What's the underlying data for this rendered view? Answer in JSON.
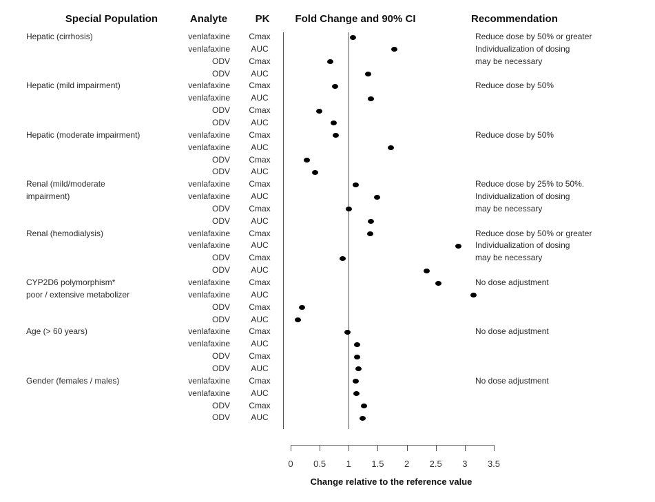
{
  "header": {
    "special_population": "Special Population",
    "analyte": "Analyte",
    "pk": "PK",
    "fold_change": "Fold Change and 90% CI",
    "recommendation": "Recommendation"
  },
  "chart_data": {
    "type": "scatter",
    "title": "Fold Change and 90% CI",
    "xlabel": "Change relative to the reference value",
    "xlim": [
      0,
      3.5
    ],
    "x_ticks": [
      0,
      0.5,
      1,
      1.5,
      2,
      2.5,
      3,
      3.5
    ],
    "x_tick_labels": [
      "0",
      "0.5",
      "1",
      "1.5",
      "2",
      "2.5",
      "3",
      "3.5"
    ],
    "reference_line_x": 1,
    "grid": false,
    "point_style": "filled-black-dot",
    "groups": [
      {
        "population_lines": [
          "Hepatic (cirrhosis)"
        ],
        "recommendation_lines": [
          "Reduce dose by 50% or greater",
          "Individualization of dosing",
          "may be necessary"
        ],
        "rows": [
          {
            "analyte": "venlafaxine",
            "pk": "Cmax",
            "value": 1.07
          },
          {
            "analyte": "venlafaxine",
            "pk": "AUC",
            "value": 1.78
          },
          {
            "analyte": "ODV",
            "pk": "Cmax",
            "value": 0.68
          },
          {
            "analyte": "ODV",
            "pk": "AUC",
            "value": 1.33
          }
        ]
      },
      {
        "population_lines": [
          "Hepatic (mild impairment)"
        ],
        "recommendation_lines": [
          "Reduce dose by 50%"
        ],
        "rows": [
          {
            "analyte": "venlafaxine",
            "pk": "Cmax",
            "value": 0.77
          },
          {
            "analyte": "venlafaxine",
            "pk": "AUC",
            "value": 1.38
          },
          {
            "analyte": "ODV",
            "pk": "Cmax",
            "value": 0.49
          },
          {
            "analyte": "ODV",
            "pk": "AUC",
            "value": 0.74
          }
        ]
      },
      {
        "population_lines": [
          "Hepatic (moderate impairment)"
        ],
        "recommendation_lines": [
          "Reduce dose by 50%"
        ],
        "rows": [
          {
            "analyte": "venlafaxine",
            "pk": "Cmax",
            "value": 0.78
          },
          {
            "analyte": "venlafaxine",
            "pk": "AUC",
            "value": 1.73
          },
          {
            "analyte": "ODV",
            "pk": "Cmax",
            "value": 0.28
          },
          {
            "analyte": "ODV",
            "pk": "AUC",
            "value": 0.42
          }
        ]
      },
      {
        "population_lines": [
          "Renal (mild/moderate",
          "impairment)"
        ],
        "recommendation_lines": [
          "Reduce dose by 25% to 50%.",
          "Individualization of dosing",
          "may be necessary"
        ],
        "rows": [
          {
            "analyte": "venlafaxine",
            "pk": "Cmax",
            "value": 1.12
          },
          {
            "analyte": "venlafaxine",
            "pk": "AUC",
            "value": 1.49
          },
          {
            "analyte": "ODV",
            "pk": "Cmax",
            "value": 1.0
          },
          {
            "analyte": "ODV",
            "pk": "AUC",
            "value": 1.38
          }
        ]
      },
      {
        "population_lines": [
          "Renal (hemodialysis)"
        ],
        "recommendation_lines": [
          "Reduce dose by 50% or greater",
          "Individualization of dosing",
          "may be necessary"
        ],
        "rows": [
          {
            "analyte": "venlafaxine",
            "pk": "Cmax",
            "value": 1.37
          },
          {
            "analyte": "venlafaxine",
            "pk": "AUC",
            "value": 2.89
          },
          {
            "analyte": "ODV",
            "pk": "Cmax",
            "value": 0.9
          },
          {
            "analyte": "ODV",
            "pk": "AUC",
            "value": 2.34
          }
        ]
      },
      {
        "population_lines": [
          "CYP2D6 polymorphism*",
          "poor / extensive metabolizer"
        ],
        "recommendation_lines": [
          "No dose adjustment"
        ],
        "rows": [
          {
            "analyte": "venlafaxine",
            "pk": "Cmax",
            "value": 2.54
          },
          {
            "analyte": "venlafaxine",
            "pk": "AUC",
            "value": 3.15
          },
          {
            "analyte": "ODV",
            "pk": "Cmax",
            "value": 0.19
          },
          {
            "analyte": "ODV",
            "pk": "AUC",
            "value": 0.13
          }
        ]
      },
      {
        "population_lines": [
          "Age (> 60 years)"
        ],
        "recommendation_lines": [
          "No dose adjustment"
        ],
        "rows": [
          {
            "analyte": "venlafaxine",
            "pk": "Cmax",
            "value": 0.98
          },
          {
            "analyte": "venlafaxine",
            "pk": "AUC",
            "value": 1.15
          },
          {
            "analyte": "ODV",
            "pk": "Cmax",
            "value": 1.15
          },
          {
            "analyte": "ODV",
            "pk": "AUC",
            "value": 1.17
          }
        ]
      },
      {
        "population_lines": [
          "Gender (females / males)"
        ],
        "recommendation_lines": [
          "No dose adjustment"
        ],
        "rows": [
          {
            "analyte": "venlafaxine",
            "pk": "Cmax",
            "value": 1.12
          },
          {
            "analyte": "venlafaxine",
            "pk": "AUC",
            "value": 1.13
          },
          {
            "analyte": "ODV",
            "pk": "Cmax",
            "value": 1.26
          },
          {
            "analyte": "ODV",
            "pk": "AUC",
            "value": 1.24
          }
        ]
      }
    ]
  },
  "colors": {
    "dot": "#000000",
    "line": "#555555",
    "text": "#2b2b2b",
    "header_text": "#111111",
    "background": "#ffffff"
  }
}
